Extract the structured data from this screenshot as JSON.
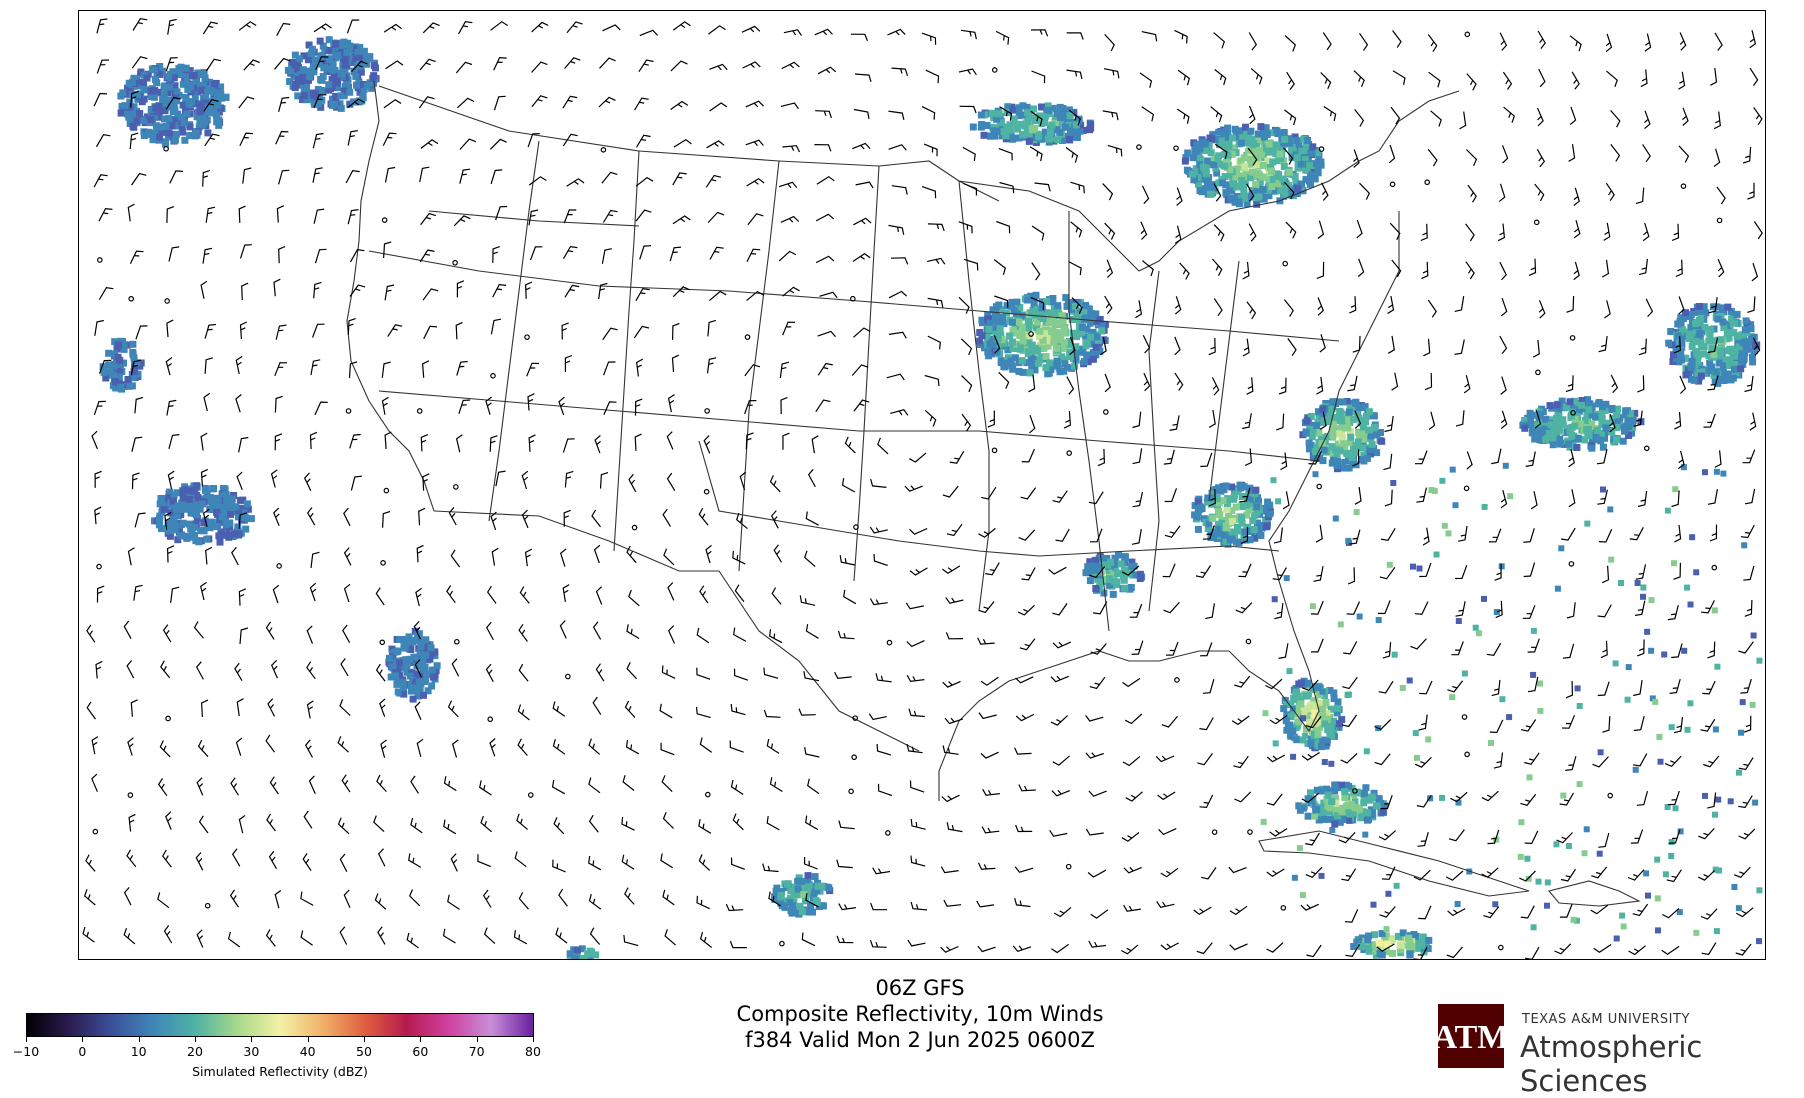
{
  "title": {
    "line1": "06Z GFS",
    "line2": "Composite Reflectivity, 10m Winds",
    "line3": "f384 Valid Mon 2 Jun 2025 0600Z"
  },
  "colorbar": {
    "label": "Simulated Reflectivity (dBZ)",
    "ticks": [
      "−10",
      "0",
      "10",
      "20",
      "30",
      "40",
      "50",
      "60",
      "70",
      "80"
    ],
    "min": -10,
    "max": 80,
    "colors": [
      "#000004",
      "#2b1b4e",
      "#3b4f9a",
      "#3f86b8",
      "#4fb3a3",
      "#a8d88a",
      "#f3f2a5",
      "#f1b26b",
      "#e0603f",
      "#b51b4f",
      "#d040a0",
      "#c88fd8",
      "#6a1fa0"
    ]
  },
  "logo": {
    "emblem": "ATM",
    "university": "TEXAS A&M UNIVERSITY",
    "department": "Atmospheric Sciences"
  },
  "map": {
    "region": "Continental United States",
    "colors": {
      "coast": "#222222",
      "borders": "#333333",
      "barb": "#000000"
    }
  }
}
